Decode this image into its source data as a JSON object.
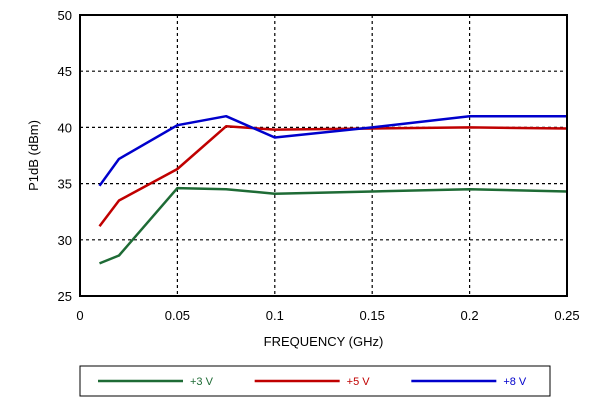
{
  "chart_data": {
    "type": "line",
    "xlabel": "FREQUENCY (GHz)",
    "ylabel": "P1dB (dBm)",
    "xlim": [
      0,
      0.25
    ],
    "ylim": [
      25,
      50
    ],
    "xticks": [
      "0",
      "0.05",
      "0.1",
      "0.15",
      "0.2",
      "0.25"
    ],
    "xtick_values": [
      0,
      0.05,
      0.1,
      0.15,
      0.2,
      0.25
    ],
    "yticks": [
      "25",
      "30",
      "35",
      "40",
      "45",
      "50"
    ],
    "ytick_values": [
      25,
      30,
      35,
      40,
      45,
      50
    ],
    "grid": true,
    "legend_position": "bottom",
    "series": [
      {
        "name": "+3 V",
        "color": "#1e6b35",
        "x": [
          0.01,
          0.02,
          0.05,
          0.075,
          0.1,
          0.15,
          0.2,
          0.25
        ],
        "y": [
          27.9,
          28.6,
          34.6,
          34.5,
          34.1,
          34.3,
          34.5,
          34.3
        ]
      },
      {
        "name": "+5 V",
        "color": "#c00000",
        "x": [
          0.01,
          0.02,
          0.05,
          0.075,
          0.1,
          0.15,
          0.2,
          0.25
        ],
        "y": [
          31.2,
          33.5,
          36.3,
          40.1,
          39.8,
          39.9,
          40.0,
          39.9
        ]
      },
      {
        "name": "+8 V",
        "color": "#0000cc",
        "x": [
          0.01,
          0.02,
          0.05,
          0.075,
          0.1,
          0.15,
          0.2,
          0.25
        ],
        "y": [
          34.8,
          37.2,
          40.2,
          41.0,
          39.1,
          40.0,
          41.0,
          41.0
        ]
      }
    ]
  }
}
